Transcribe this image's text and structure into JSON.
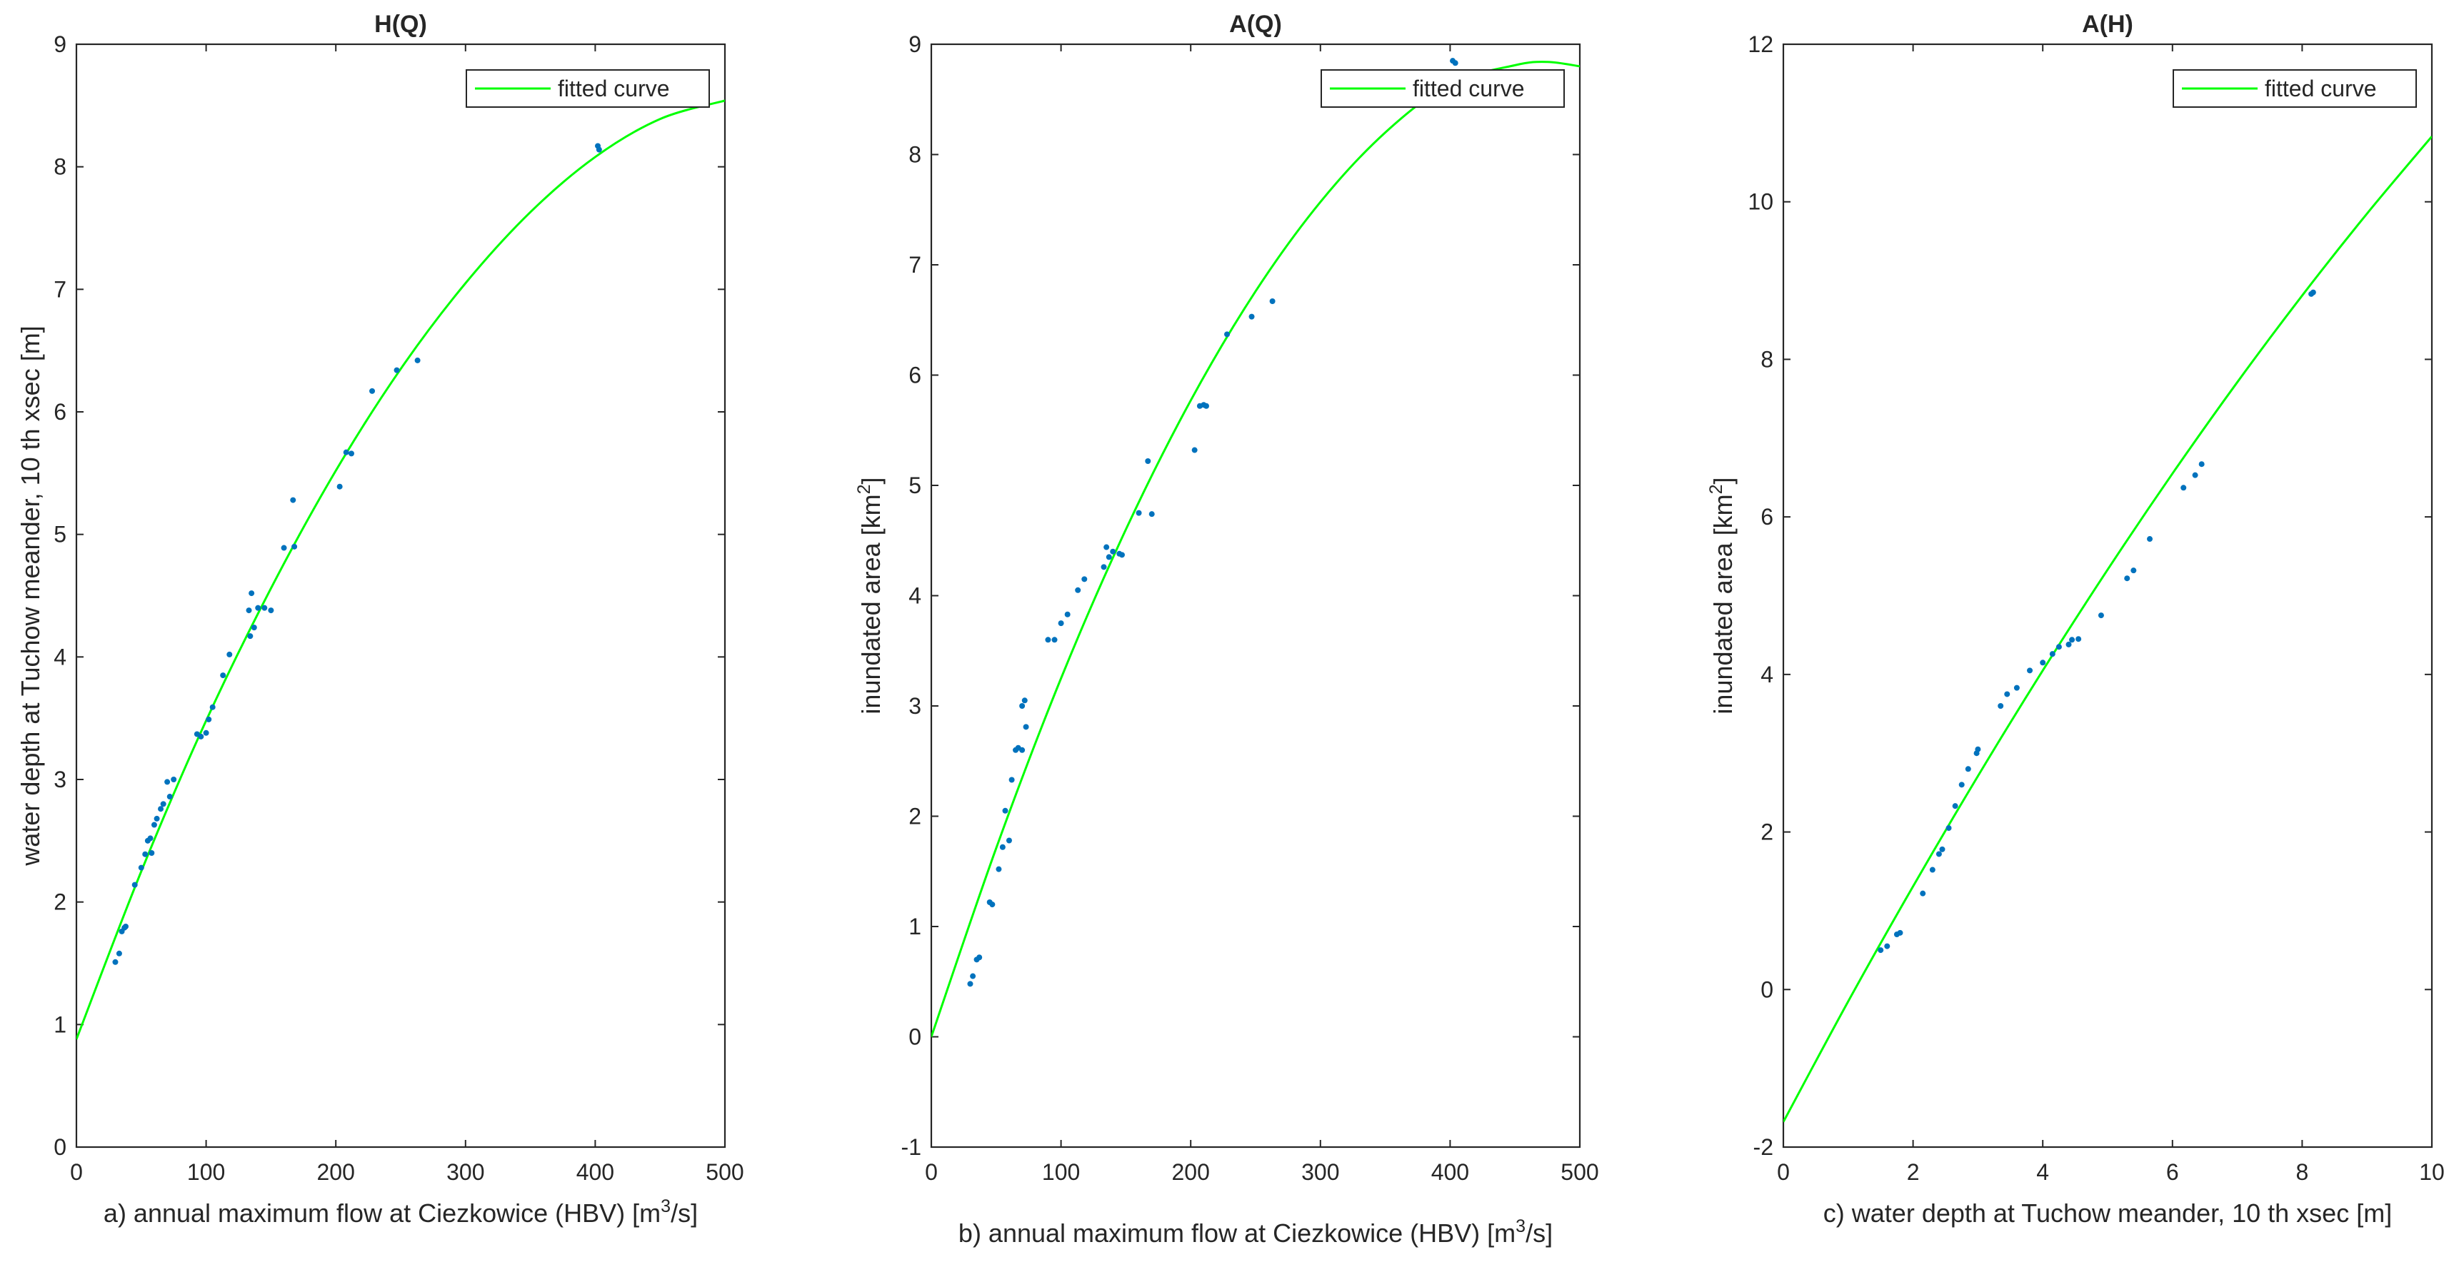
{
  "chart_data": [
    {
      "type": "scatter",
      "title": "H(Q)",
      "xlabel": {
        "prefix": "a)  annual maximum flow at Ciezkowice (HBV) [m",
        "sup": "3",
        "suffix": "/s]"
      },
      "ylabel": {
        "prefix": "water  depth at Tuchow meander, 10 th xsec [m]",
        "sup": "",
        "suffix": ""
      },
      "xlim": [
        0,
        500
      ],
      "ylim": [
        0,
        9
      ],
      "xticks": [
        0,
        100,
        200,
        300,
        400,
        500
      ],
      "yticks": [
        0,
        1,
        2,
        3,
        4,
        5,
        6,
        7,
        8,
        9
      ],
      "grid": false,
      "legend": {
        "position": "top-right",
        "entries": [
          "fitted curve"
        ]
      },
      "series": [
        {
          "name": "",
          "kind": "points",
          "color": "#0072BD",
          "x": [
            30,
            33,
            35,
            37,
            38,
            45,
            50,
            53,
            55,
            57,
            58,
            60,
            62,
            65,
            67,
            70,
            72,
            75,
            93,
            96,
            100,
            102,
            105,
            113,
            118,
            133,
            134,
            135,
            137,
            140,
            145,
            150,
            160,
            167,
            168,
            203,
            208,
            212,
            228,
            247,
            263,
            402,
            403
          ],
          "y": [
            1.51,
            1.58,
            1.76,
            1.79,
            1.8,
            2.14,
            2.28,
            2.39,
            2.5,
            2.52,
            2.4,
            2.63,
            2.68,
            2.76,
            2.8,
            2.98,
            2.86,
            3.0,
            3.37,
            3.35,
            3.38,
            3.49,
            3.59,
            3.85,
            4.02,
            4.38,
            4.17,
            4.52,
            4.24,
            4.4,
            4.4,
            4.38,
            4.89,
            5.28,
            4.9,
            5.39,
            5.67,
            5.66,
            6.17,
            6.34,
            6.42,
            8.17,
            8.14
          ]
        },
        {
          "name": "fitted curve",
          "kind": "curve",
          "color": "#00FF00",
          "x": [
            0,
            50,
            100,
            150,
            200,
            250,
            300,
            350,
            400,
            450,
            500
          ],
          "y": [
            0.88,
            2.25,
            3.48,
            4.56,
            5.52,
            6.35,
            7.05,
            7.63,
            8.08,
            8.39,
            8.54
          ]
        }
      ]
    },
    {
      "type": "scatter",
      "title": "A(Q)",
      "xlabel": {
        "prefix": "b)  annual maximum flow at Ciezkowice (HBV) [m",
        "sup": "3",
        "suffix": "/s]"
      },
      "ylabel": {
        "prefix": "inundated area [km",
        "sup": "2",
        "suffix": "]"
      },
      "xlim": [
        0,
        500
      ],
      "ylim": [
        -1,
        9
      ],
      "xticks": [
        0,
        100,
        200,
        300,
        400,
        500
      ],
      "yticks": [
        -1,
        0,
        1,
        2,
        3,
        4,
        5,
        6,
        7,
        8,
        9
      ],
      "grid": false,
      "legend": {
        "position": "top-right",
        "entries": [
          "fitted curve"
        ]
      },
      "series": [
        {
          "name": "",
          "kind": "points",
          "color": "#0072BD",
          "x": [
            30,
            32,
            35,
            37,
            45,
            47,
            52,
            55,
            57,
            60,
            62,
            65,
            67,
            70,
            72,
            70,
            73,
            90,
            95,
            100,
            105,
            113,
            118,
            133,
            135,
            137,
            140,
            145,
            147,
            160,
            167,
            170,
            203,
            207,
            210,
            212,
            228,
            247,
            263,
            402,
            404
          ],
          "y": [
            0.48,
            0.55,
            0.7,
            0.72,
            1.22,
            1.2,
            1.52,
            1.72,
            2.05,
            1.78,
            2.33,
            2.6,
            2.62,
            3.0,
            3.05,
            2.6,
            2.81,
            3.6,
            3.6,
            3.75,
            3.83,
            4.05,
            4.15,
            4.26,
            4.44,
            4.35,
            4.4,
            4.38,
            4.37,
            4.75,
            5.22,
            4.74,
            5.32,
            5.72,
            5.73,
            5.72,
            6.37,
            6.53,
            6.67,
            8.85,
            8.83
          ]
        },
        {
          "name": "fitted curve",
          "kind": "curve",
          "color": "#00FF00",
          "x": [
            0,
            50,
            100,
            150,
            200,
            250,
            300,
            350,
            400,
            450,
            475,
            500
          ],
          "y": [
            0.0,
            1.71,
            3.25,
            4.6,
            5.77,
            6.76,
            7.57,
            8.2,
            8.64,
            8.81,
            8.84,
            8.8
          ]
        }
      ]
    },
    {
      "type": "scatter",
      "title": "A(H)",
      "xlabel": {
        "prefix": "c)  water  depth at Tuchow meander, 10 th xsec [m]",
        "sup": "",
        "suffix": ""
      },
      "ylabel": {
        "prefix": "inundated area [km",
        "sup": "2",
        "suffix": "]"
      },
      "xlim": [
        0,
        10
      ],
      "ylim": [
        -2,
        12
      ],
      "xticks": [
        0,
        2,
        4,
        6,
        8,
        10
      ],
      "yticks": [
        -2,
        0,
        2,
        4,
        6,
        8,
        10,
        12
      ],
      "grid": false,
      "legend": {
        "position": "top-right",
        "entries": [
          "fitted curve"
        ]
      },
      "series": [
        {
          "name": "",
          "kind": "points",
          "color": "#0072BD",
          "x": [
            1.5,
            1.6,
            1.75,
            1.8,
            2.15,
            2.3,
            2.4,
            2.45,
            2.55,
            2.65,
            2.75,
            2.85,
            2.98,
            3.0,
            3.35,
            3.45,
            3.6,
            3.8,
            4.0,
            4.15,
            4.25,
            4.4,
            4.45,
            4.55,
            4.9,
            5.3,
            5.4,
            5.65,
            6.17,
            6.35,
            6.45,
            8.14,
            8.17
          ],
          "y": [
            0.5,
            0.55,
            0.7,
            0.72,
            1.22,
            1.52,
            1.72,
            1.78,
            2.05,
            2.33,
            2.6,
            2.8,
            3.0,
            3.05,
            3.6,
            3.75,
            3.83,
            4.05,
            4.15,
            4.26,
            4.35,
            4.38,
            4.44,
            4.45,
            4.75,
            5.22,
            5.32,
            5.72,
            6.37,
            6.53,
            6.67,
            8.83,
            8.85
          ]
        },
        {
          "name": "fitted curve",
          "kind": "curve",
          "color": "#00FF00",
          "x": [
            0,
            1,
            2,
            3,
            4,
            5,
            6,
            7,
            8,
            9,
            10
          ],
          "y": [
            -1.68,
            -0.15,
            1.31,
            2.71,
            4.05,
            5.33,
            6.55,
            7.71,
            8.81,
            9.85,
            10.83
          ]
        }
      ]
    }
  ]
}
